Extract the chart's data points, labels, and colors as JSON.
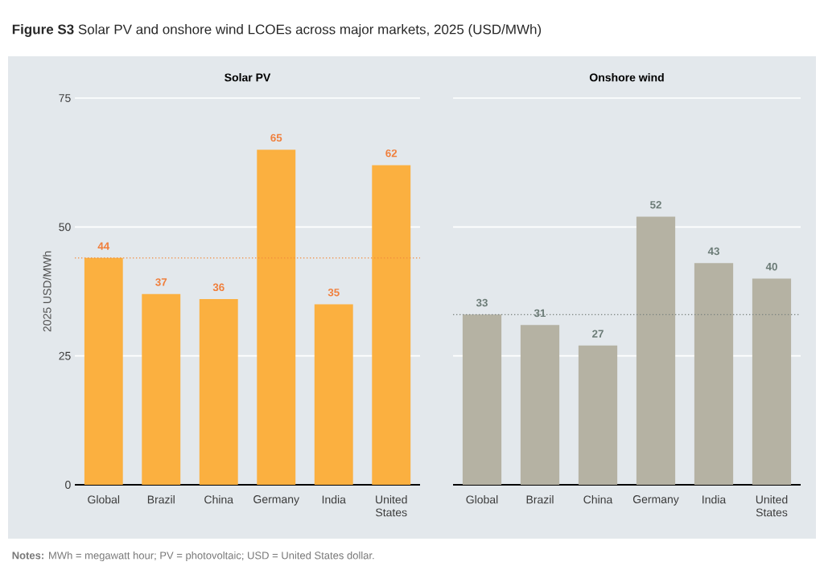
{
  "chart_data": [
    {
      "type": "bar",
      "title": "**Figure S3** Solar PV and onshore wind LCOEs across major markets, 2025 (USD/MWh)",
      "subtitle": "Solar PV",
      "ylabel": "2025 USD/MWh",
      "categories": [
        "Global",
        "Brazil",
        "China",
        "Germany",
        "India",
        "United States"
      ],
      "values": [
        44,
        37,
        36,
        65,
        35,
        62
      ],
      "color": "#fbb040",
      "ylim": [
        0,
        75
      ],
      "yticks": [
        0,
        25,
        50,
        75
      ],
      "grid": "y",
      "data_labels": true,
      "ref_lines": [
        {
          "axis": "y",
          "value": 44,
          "color": "#f08a3c",
          "line_style": "dotted"
        }
      ]
    },
    {
      "type": "bar",
      "subtitle": "Onshore wind",
      "categories": [
        "Global",
        "Brazil",
        "China",
        "Germany",
        "India",
        "United States"
      ],
      "values": [
        33,
        31,
        27,
        52,
        43,
        40
      ],
      "color": "#b5b2a3",
      "ylim": [
        0,
        75
      ],
      "yticks": [
        0,
        25,
        50,
        75
      ],
      "grid": "y",
      "data_labels": true,
      "tick_labels": "x",
      "ref_lines": [
        {
          "axis": "y",
          "value": 33,
          "color": "#7a827f",
          "line_style": "dotted"
        }
      ],
      "annotations": [
        "**Notes:** MWh = megawatt hour; PV = photovoltaic; USD = United States dollar."
      ]
    }
  ]
}
